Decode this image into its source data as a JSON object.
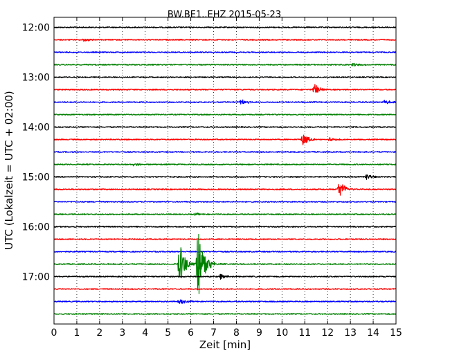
{
  "chart_data": {
    "type": "line",
    "title": "BW.BE1..EHZ 2015-05-23",
    "xlabel": "Zeit  [min]",
    "ylabel": "UTC (Lokalzeit = UTC + 02:00)",
    "xlim": [
      0,
      15
    ],
    "x_ticks": [
      "0",
      "1",
      "2",
      "3",
      "4",
      "5",
      "6",
      "7",
      "8",
      "9",
      "10",
      "11",
      "12",
      "13",
      "14",
      "15"
    ],
    "y_tick_labels": [
      "12:00",
      "13:00",
      "14:00",
      "15:00",
      "16:00",
      "17:00"
    ],
    "grid": "vertical dotted",
    "trace_interval_minutes": 15,
    "color_cycle": [
      "#000000",
      "#ff0000",
      "#0000ff",
      "#008000"
    ],
    "traces": [
      {
        "start": "12:00",
        "events": []
      },
      {
        "start": "12:15",
        "events": [
          {
            "t": 1.3,
            "amp": 0.3
          }
        ]
      },
      {
        "start": "12:30",
        "events": []
      },
      {
        "start": "12:45",
        "events": [
          {
            "t": 13.1,
            "amp": 0.4
          }
        ]
      },
      {
        "start": "13:00",
        "events": []
      },
      {
        "start": "13:15",
        "events": [
          {
            "t": 11.4,
            "amp": 1.0
          }
        ]
      },
      {
        "start": "13:30",
        "events": [
          {
            "t": 8.2,
            "amp": 0.5
          },
          {
            "t": 14.5,
            "amp": 0.4
          }
        ]
      },
      {
        "start": "13:45",
        "events": []
      },
      {
        "start": "14:00",
        "events": []
      },
      {
        "start": "14:15",
        "events": [
          {
            "t": 10.9,
            "amp": 1.1
          },
          {
            "t": 12.1,
            "amp": 0.4
          }
        ]
      },
      {
        "start": "14:30",
        "events": []
      },
      {
        "start": "14:45",
        "events": [
          {
            "t": 3.5,
            "amp": 0.3
          }
        ]
      },
      {
        "start": "15:00",
        "events": [
          {
            "t": 13.7,
            "amp": 0.5
          }
        ]
      },
      {
        "start": "15:15",
        "events": [
          {
            "t": 12.5,
            "amp": 1.6
          }
        ]
      },
      {
        "start": "15:30",
        "events": []
      },
      {
        "start": "15:45",
        "events": [
          {
            "t": 6.2,
            "amp": 0.2
          }
        ]
      },
      {
        "start": "16:00",
        "events": [
          {
            "t": 6.9,
            "amp": 0.2
          }
        ]
      },
      {
        "start": "16:15",
        "events": []
      },
      {
        "start": "16:30",
        "events": []
      },
      {
        "start": "16:45",
        "events": [
          {
            "t": 5.5,
            "amp": 3.8
          },
          {
            "t": 6.3,
            "amp": 6.2
          },
          {
            "t": 6.6,
            "amp": 0.7
          }
        ]
      },
      {
        "start": "17:00",
        "events": [
          {
            "t": 7.3,
            "amp": 0.5
          }
        ]
      },
      {
        "start": "17:15",
        "events": []
      },
      {
        "start": "17:30",
        "events": [
          {
            "t": 5.5,
            "amp": 0.5
          }
        ]
      },
      {
        "start": "17:45",
        "events": []
      }
    ]
  }
}
